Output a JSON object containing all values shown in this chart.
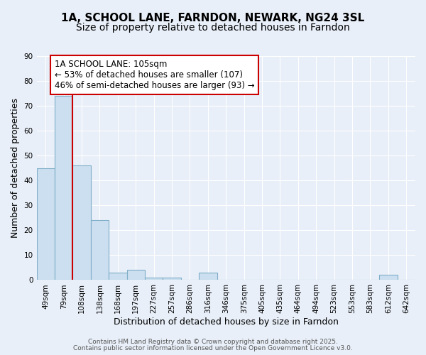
{
  "title_line1": "1A, SCHOOL LANE, FARNDON, NEWARK, NG24 3SL",
  "title_line2": "Size of property relative to detached houses in Farndon",
  "xlabel": "Distribution of detached houses by size in Farndon",
  "ylabel": "Number of detached properties",
  "categories": [
    "49sqm",
    "79sqm",
    "108sqm",
    "138sqm",
    "168sqm",
    "197sqm",
    "227sqm",
    "257sqm",
    "286sqm",
    "316sqm",
    "346sqm",
    "375sqm",
    "405sqm",
    "435sqm",
    "464sqm",
    "494sqm",
    "523sqm",
    "553sqm",
    "583sqm",
    "612sqm",
    "642sqm"
  ],
  "values": [
    45,
    74,
    46,
    24,
    3,
    4,
    1,
    1,
    0,
    3,
    0,
    0,
    0,
    0,
    0,
    0,
    0,
    0,
    0,
    2,
    0
  ],
  "bar_color": "#ccdff0",
  "bar_edge_color": "#7faec8",
  "ylim": [
    0,
    90
  ],
  "yticks": [
    0,
    10,
    20,
    30,
    40,
    50,
    60,
    70,
    80,
    90
  ],
  "vline_x": 2,
  "vline_color": "#cc0000",
  "annotation_line1": "1A SCHOOL LANE: 105sqm",
  "annotation_line2": "← 53% of detached houses are smaller (107)",
  "annotation_line3": "46% of semi-detached houses are larger (93) →",
  "annotation_box_color": "#cc0000",
  "annotation_box_bg": "#ffffff",
  "footnote1": "Contains HM Land Registry data © Crown copyright and database right 2025.",
  "footnote2": "Contains public sector information licensed under the Open Government Licence v3.0.",
  "background_color": "#e8eff8",
  "plot_bg_color": "#e8eff8",
  "grid_color": "#ffffff",
  "title_fontsize": 11,
  "subtitle_fontsize": 10,
  "label_fontsize": 9,
  "tick_fontsize": 7.5,
  "annotation_fontsize": 8.5,
  "footnote_fontsize": 6.5
}
